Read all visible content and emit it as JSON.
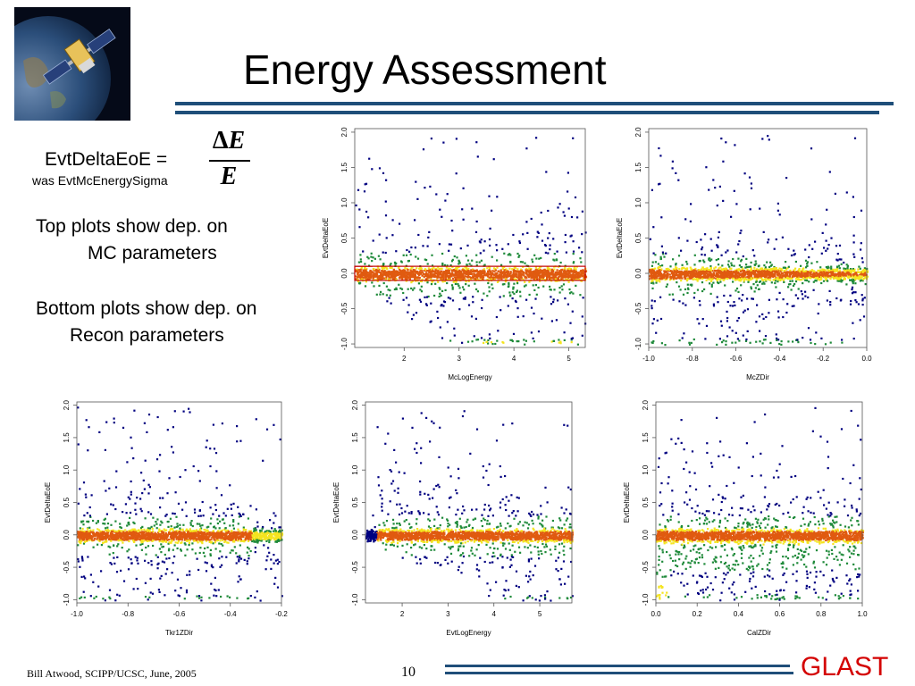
{
  "slide": {
    "title": "Energy Assessment",
    "page_number": "10",
    "footer": "Bill Atwood,  SCIPP/UCSC, June, 2005",
    "brand": "GLAST",
    "brand_color": "#d40000",
    "rule_color": "#1f4e79"
  },
  "definition": {
    "lhs": "EvtDeltaEoE =",
    "was": "was EvtMcEnergySigma",
    "delta_symbol": "Δ",
    "numerator_var": "E",
    "denominator_var": "E"
  },
  "notes": {
    "top_line1": "Top plots show dep. on",
    "top_line2": "MC parameters",
    "bottom_line1": "Bottom plots show dep. on",
    "bottom_line2": "Recon parameters"
  },
  "chart_data": [
    {
      "type": "heatmap",
      "xlabel": "McLogEnergy",
      "ylabel": "EvtDeltaEoE",
      "xlim": [
        1.1,
        5.3
      ],
      "ylim": [
        -1.05,
        2.05
      ],
      "xticks": [
        "2",
        "3",
        "4",
        "5"
      ],
      "yticks": [
        "-1.0",
        "-0.5",
        "0.0",
        "0.5",
        "1.0",
        "1.5",
        "2.0"
      ],
      "highlight_box": {
        "x": [
          1.1,
          5.3
        ],
        "y": [
          -0.1,
          0.1
        ]
      },
      "shape": "mcloge"
    },
    {
      "type": "heatmap",
      "xlabel": "McZDir",
      "ylabel": "EvtDeltaEoE",
      "xlim": [
        -1.0,
        0.0
      ],
      "ylim": [
        -1.05,
        2.05
      ],
      "xticks": [
        "-1.0",
        "-0.8",
        "-0.6",
        "-0.4",
        "-0.2",
        "0.0"
      ],
      "yticks": [
        "-1.0",
        "-0.5",
        "0.0",
        "0.5",
        "1.0",
        "1.5",
        "2.0"
      ],
      "shape": "mczdir"
    },
    {
      "type": "heatmap",
      "xlabel": "Tkr1ZDir",
      "ylabel": "EvtDeltaEoE",
      "xlim": [
        -1.0,
        -0.2
      ],
      "ylim": [
        -1.05,
        2.05
      ],
      "xticks": [
        "-1.0",
        "-0.8",
        "-0.6",
        "-0.4",
        "-0.2"
      ],
      "yticks": [
        "-1.0",
        "-0.5",
        "0.0",
        "0.5",
        "1.0",
        "1.5",
        "2.0"
      ],
      "shape": "tkr1zdir"
    },
    {
      "type": "heatmap",
      "xlabel": "EvtLogEnergy",
      "ylabel": "EvtDeltaEoE",
      "xlim": [
        1.2,
        5.7
      ],
      "ylim": [
        -1.05,
        2.05
      ],
      "xticks": [
        "2",
        "3",
        "4",
        "5"
      ],
      "yticks": [
        "-1.0",
        "-0.5",
        "0.0",
        "0.5",
        "1.0",
        "1.5",
        "2.0"
      ],
      "shape": "evtloge"
    },
    {
      "type": "heatmap",
      "xlabel": "CalZDir",
      "ylabel": "EvtDeltaEoE",
      "xlim": [
        0.0,
        1.0
      ],
      "ylim": [
        -1.05,
        2.05
      ],
      "xticks": [
        "0.0",
        "0.2",
        "0.4",
        "0.6",
        "0.8",
        "1.0"
      ],
      "yticks": [
        "-1.0",
        "-0.5",
        "0.0",
        "0.5",
        "1.0",
        "1.5",
        "2.0"
      ],
      "shape": "calzdir"
    }
  ],
  "colors": {
    "low": "#000080",
    "mid": "#1f8a3a",
    "high": "#f4e41f",
    "peak": "#e05a10"
  }
}
